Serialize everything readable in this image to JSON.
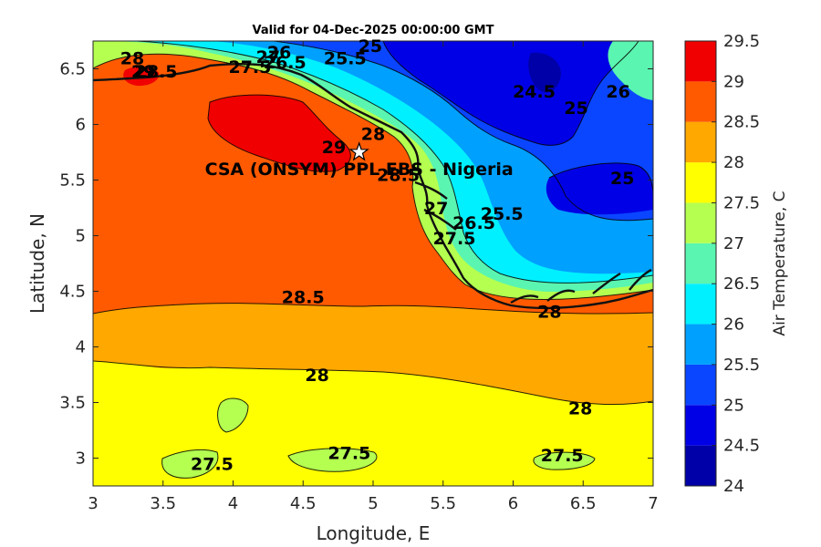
{
  "chart_data": {
    "type": "heatmap",
    "subtype": "filled-contour-map",
    "title": "Valid for 04-Dec-2025 00:00:00 GMT",
    "xlabel": "Longitude, E",
    "ylabel": "Latitude, N",
    "xlim": [
      3,
      7
    ],
    "ylim": [
      2.75,
      6.75
    ],
    "xticks": [
      "3",
      "3.5",
      "4",
      "4.5",
      "5",
      "5.5",
      "6",
      "6.5",
      "7"
    ],
    "yticks": [
      "3",
      "3.5",
      "4",
      "4.5",
      "5",
      "5.5",
      "6",
      "6.5"
    ],
    "colorbar": {
      "label": "Air Temperature, C",
      "ticks": [
        "24",
        "24.5",
        "25",
        "25.5",
        "26",
        "26.5",
        "27",
        "27.5",
        "28",
        "28.5",
        "29",
        "29.5"
      ],
      "levels": [
        24,
        24.5,
        25,
        25.5,
        26,
        26.5,
        27,
        27.5,
        28,
        28.5,
        29,
        29.5
      ],
      "colors": [
        "#0000a8",
        "#0000e6",
        "#0a46ff",
        "#00a0ff",
        "#00f0ff",
        "#5af5b0",
        "#b4ff50",
        "#ffff00",
        "#ffa800",
        "#ff5a00",
        "#f00000",
        "#a80000"
      ]
    },
    "site": {
      "label": "CSA (ONSYM) PPL EBS - Nigeria",
      "lon": 4.9,
      "lat": 5.75
    },
    "contour_labels": [
      {
        "text": "28",
        "lon": 3.28,
        "lat": 6.6
      },
      {
        "text": "28.5",
        "lon": 3.45,
        "lat": 6.48
      },
      {
        "text": "29",
        "lon": 3.36,
        "lat": 6.48
      },
      {
        "text": "27.5",
        "lon": 4.12,
        "lat": 6.52
      },
      {
        "text": "27",
        "lon": 4.25,
        "lat": 6.61
      },
      {
        "text": "26",
        "lon": 4.33,
        "lat": 6.65
      },
      {
        "text": "26.5",
        "lon": 4.37,
        "lat": 6.56
      },
      {
        "text": "25.5",
        "lon": 4.8,
        "lat": 6.6
      },
      {
        "text": "25",
        "lon": 4.98,
        "lat": 6.71
      },
      {
        "text": "24.5",
        "lon": 6.15,
        "lat": 6.3
      },
      {
        "text": "25",
        "lon": 6.45,
        "lat": 6.15
      },
      {
        "text": "26",
        "lon": 6.75,
        "lat": 6.3
      },
      {
        "text": "28",
        "lon": 5.0,
        "lat": 5.92
      },
      {
        "text": "29",
        "lon": 4.72,
        "lat": 5.8
      },
      {
        "text": "28.5",
        "lon": 5.18,
        "lat": 5.55
      },
      {
        "text": "25",
        "lon": 6.78,
        "lat": 5.52
      },
      {
        "text": "25.5",
        "lon": 5.92,
        "lat": 5.2
      },
      {
        "text": "27.5",
        "lon": 5.58,
        "lat": 4.98
      },
      {
        "text": "26.5",
        "lon": 5.72,
        "lat": 5.12
      },
      {
        "text": "27",
        "lon": 5.45,
        "lat": 5.25
      },
      {
        "text": "28.5",
        "lon": 4.5,
        "lat": 4.45
      },
      {
        "text": "28",
        "lon": 6.26,
        "lat": 4.32
      },
      {
        "text": "28",
        "lon": 4.6,
        "lat": 3.75
      },
      {
        "text": "28",
        "lon": 6.48,
        "lat": 3.45
      },
      {
        "text": "27.5",
        "lon": 4.83,
        "lat": 3.05
      },
      {
        "text": "27.5",
        "lon": 3.85,
        "lat": 2.95
      },
      {
        "text": "27.5",
        "lon": 6.35,
        "lat": 3.03
      }
    ]
  }
}
